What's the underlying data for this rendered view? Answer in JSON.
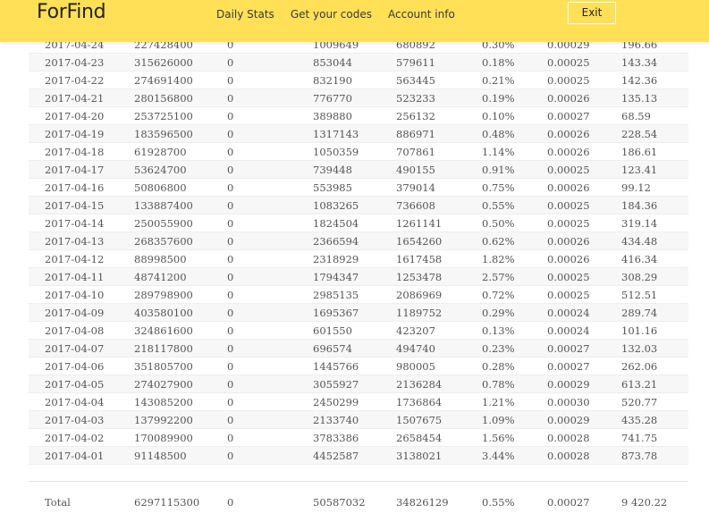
{
  "header": {
    "logo": "ForFind",
    "nav": [
      "Daily Stats",
      "Get your codes",
      "Account info"
    ],
    "exit_label": "Exit",
    "background_color": "#ffe057"
  },
  "table": {
    "rows": [
      [
        "2017-04-24",
        "227428400",
        "0",
        "1009649",
        "680892",
        "0.30%",
        "0.00029",
        "196.66"
      ],
      [
        "2017-04-23",
        "315626000",
        "0",
        "853044",
        "579611",
        "0.18%",
        "0.00025",
        "143.34"
      ],
      [
        "2017-04-22",
        "274691400",
        "0",
        "832190",
        "563445",
        "0.21%",
        "0.00025",
        "142.36"
      ],
      [
        "2017-04-21",
        "280156800",
        "0",
        "776770",
        "523233",
        "0.19%",
        "0.00026",
        "135.13"
      ],
      [
        "2017-04-20",
        "253725100",
        "0",
        "389880",
        "256132",
        "0.10%",
        "0.00027",
        "68.59"
      ],
      [
        "2017-04-19",
        "183596500",
        "0",
        "1317143",
        "886971",
        "0.48%",
        "0.00026",
        "228.54"
      ],
      [
        "2017-04-18",
        "61928700",
        "0",
        "1050359",
        "707861",
        "1.14%",
        "0.00026",
        "186.61"
      ],
      [
        "2017-04-17",
        "53624700",
        "0",
        "739448",
        "490155",
        "0.91%",
        "0.00025",
        "123.41"
      ],
      [
        "2017-04-16",
        "50806800",
        "0",
        "553985",
        "379014",
        "0.75%",
        "0.00026",
        "99.12"
      ],
      [
        "2017-04-15",
        "133887400",
        "0",
        "1083265",
        "736608",
        "0.55%",
        "0.00025",
        "184.36"
      ],
      [
        "2017-04-14",
        "250055900",
        "0",
        "1824504",
        "1261141",
        "0.50%",
        "0.00025",
        "319.14"
      ],
      [
        "2017-04-13",
        "268357600",
        "0",
        "2366594",
        "1654260",
        "0.62%",
        "0.00026",
        "434.48"
      ],
      [
        "2017-04-12",
        "88998500",
        "0",
        "2318929",
        "1617458",
        "1.82%",
        "0.00026",
        "416.34"
      ],
      [
        "2017-04-11",
        "48741200",
        "0",
        "1794347",
        "1253478",
        "2.57%",
        "0.00025",
        "308.29"
      ],
      [
        "2017-04-10",
        "289798900",
        "0",
        "2985135",
        "2086969",
        "0.72%",
        "0.00025",
        "512.51"
      ],
      [
        "2017-04-09",
        "403580100",
        "0",
        "1695367",
        "1189752",
        "0.29%",
        "0.00024",
        "289.74"
      ],
      [
        "2017-04-08",
        "324861600",
        "0",
        "601550",
        "423207",
        "0.13%",
        "0.00024",
        "101.16"
      ],
      [
        "2017-04-07",
        "218117800",
        "0",
        "696574",
        "494740",
        "0.23%",
        "0.00027",
        "132.03"
      ],
      [
        "2017-04-06",
        "351805700",
        "0",
        "1445766",
        "980005",
        "0.28%",
        "0.00027",
        "262.06"
      ],
      [
        "2017-04-05",
        "274027900",
        "0",
        "3055927",
        "2136284",
        "0.78%",
        "0.00029",
        "613.21"
      ],
      [
        "2017-04-04",
        "143085200",
        "0",
        "2450299",
        "1736864",
        "1.21%",
        "0.00030",
        "520.77"
      ],
      [
        "2017-04-03",
        "137992200",
        "0",
        "2133740",
        "1507675",
        "1.09%",
        "0.00029",
        "435.28"
      ],
      [
        "2017-04-02",
        "170089900",
        "0",
        "3783386",
        "2658454",
        "1.56%",
        "0.00028",
        "741.75"
      ],
      [
        "2017-04-01",
        "91148500",
        "0",
        "4452587",
        "3138021",
        "3.44%",
        "0.00028",
        "873.78"
      ]
    ],
    "total": [
      "Total",
      "6297115300",
      "0",
      "50587032",
      "34826129",
      "0.55%",
      "0.00027",
      "9 420.22"
    ]
  }
}
